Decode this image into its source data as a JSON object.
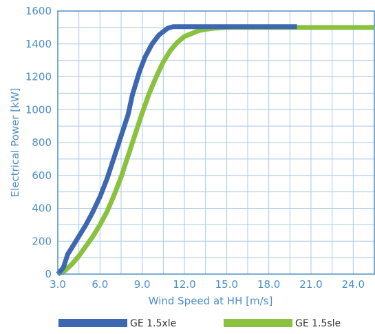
{
  "chart_data": {
    "type": "line",
    "xlabel": "Wind Speed at HH [m/s]",
    "ylabel": "Electrical Power [kW]",
    "xlim": [
      3.0,
      25.5
    ],
    "ylim": [
      0,
      1600
    ],
    "x_ticks": [
      "3.0",
      "6.0",
      "9.0",
      "12.0",
      "15.0",
      "18.0",
      "21.0",
      "24.0"
    ],
    "x_tick_values": [
      3,
      6,
      9,
      12,
      15,
      18,
      21,
      24
    ],
    "y_ticks": [
      "0",
      "200",
      "400",
      "600",
      "800",
      "1000",
      "1200",
      "1400",
      "1600"
    ],
    "y_tick_values": [
      0,
      200,
      400,
      600,
      800,
      1000,
      1200,
      1400,
      1600
    ],
    "grid": true,
    "legend_position": "bottom",
    "series": [
      {
        "name": "GE 1.5xle",
        "color": "#3d67b0",
        "x": [
          3.0,
          3.4,
          3.7,
          4.0,
          4.5,
          5.0,
          5.5,
          6.0,
          6.5,
          7.0,
          7.5,
          8.0,
          8.3,
          8.8,
          9.2,
          9.7,
          10.2,
          10.8,
          11.2,
          12.0,
          15.0,
          20.0
        ],
        "y": [
          0,
          40,
          120,
          160,
          230,
          300,
          380,
          470,
          580,
          710,
          840,
          970,
          1090,
          1230,
          1320,
          1400,
          1455,
          1495,
          1505,
          1505,
          1505,
          1505
        ]
      },
      {
        "name": "GE 1.5sle",
        "color": "#8ac13f",
        "x": [
          3.0,
          3.5,
          4.0,
          4.5,
          5.0,
          5.5,
          6.0,
          6.5,
          7.0,
          7.5,
          8.0,
          8.5,
          9.0,
          9.5,
          10.0,
          10.5,
          11.0,
          11.5,
          12.0,
          13.0,
          14.0,
          15.0,
          20.0,
          25.5
        ],
        "y": [
          0,
          20,
          60,
          110,
          170,
          230,
          300,
          380,
          480,
          590,
          720,
          850,
          980,
          1100,
          1200,
          1290,
          1360,
          1410,
          1445,
          1480,
          1495,
          1500,
          1500,
          1500
        ]
      }
    ]
  }
}
